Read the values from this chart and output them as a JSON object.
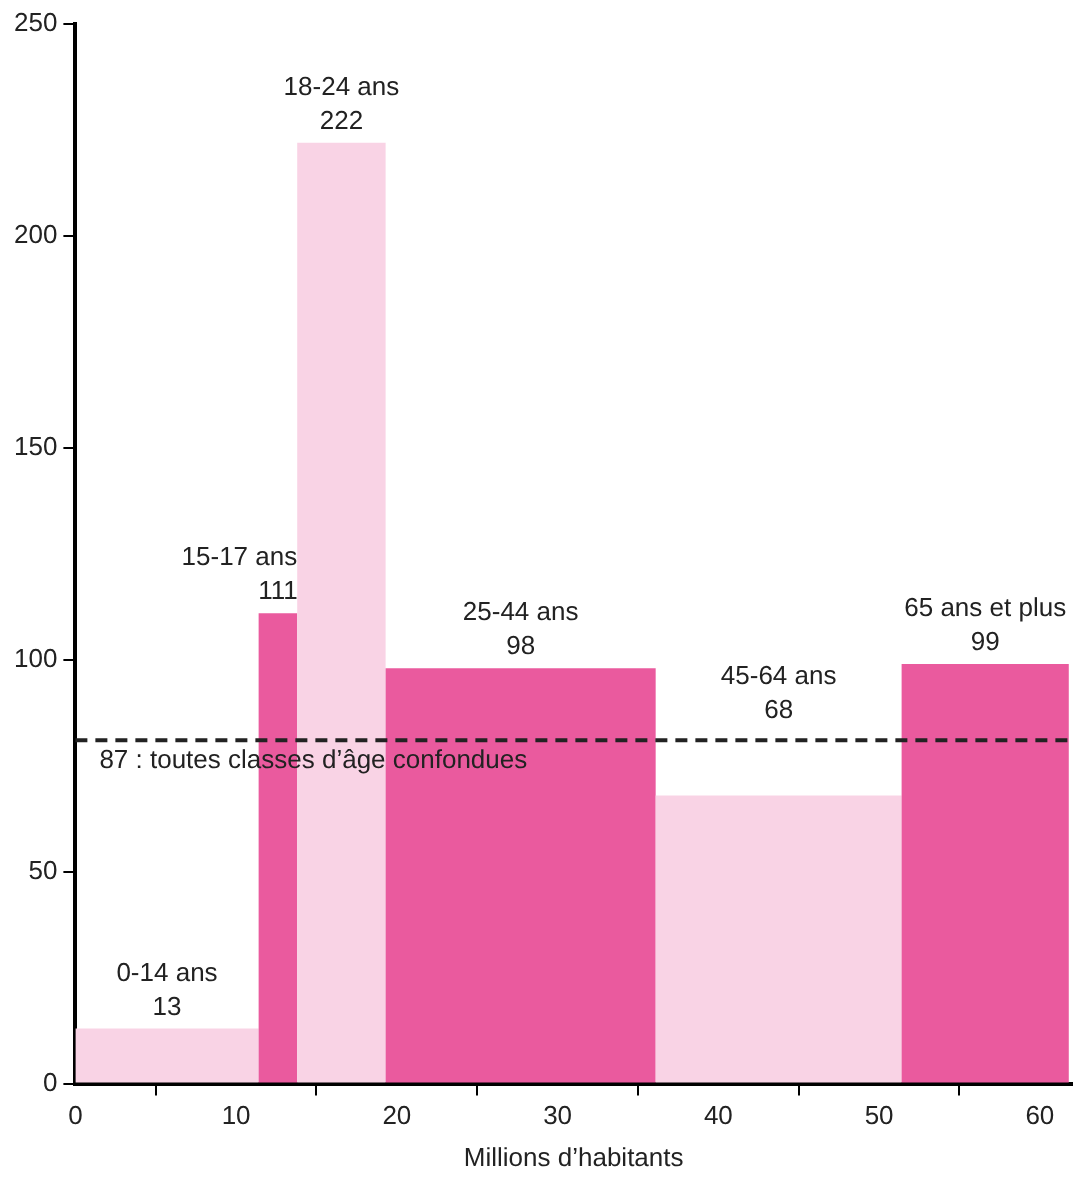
{
  "chart_data": {
    "type": "histogram",
    "xlabel": "Millions d’habitants",
    "categories": [
      "0-14 ans",
      "15-17 ans",
      "18-24 ans",
      "25-44 ans",
      "45-64 ans",
      "65 ans et plus"
    ],
    "bins": [
      0,
      11.4,
      13.8,
      19.3,
      36.1,
      51.4,
      61.8
    ],
    "values": [
      13,
      111,
      222,
      98,
      68,
      99
    ],
    "colors": [
      "#f9d3e5",
      "#ea5a9e",
      "#f9d3e5",
      "#ea5a9e",
      "#f9d3e5",
      "#ea5a9e"
    ],
    "data_labels": true,
    "xlim": [
      0,
      62
    ],
    "xticks": [
      0,
      10,
      20,
      30,
      40,
      50,
      60
    ],
    "ylim": [
      0,
      250
    ],
    "yticks": [
      0,
      50,
      100,
      150,
      200,
      250
    ],
    "grid": false,
    "legend": false,
    "ref_lines": [
      {
        "axis": "y",
        "value": 81,
        "label": "87 : toutes classes d’âge confondues",
        "color": "#222222",
        "line_style": "dashed"
      }
    ]
  }
}
